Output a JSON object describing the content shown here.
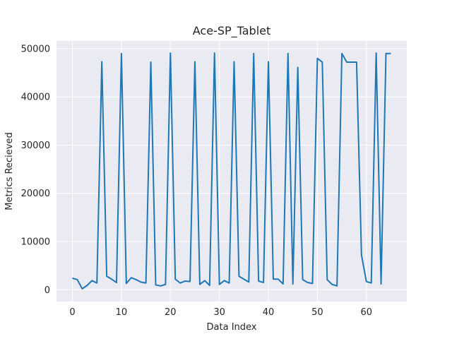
{
  "chart_data": {
    "type": "line",
    "title": "Ace-SP_Tablet",
    "xlabel": "Data Index",
    "ylabel": "Metrics Recieved",
    "xlim": [
      -3.25,
      68.25
    ],
    "ylim": [
      -2450,
      51600
    ],
    "xticks": [
      0,
      10,
      20,
      30,
      40,
      50,
      60
    ],
    "yticks": [
      0,
      10000,
      20000,
      30000,
      40000,
      50000
    ],
    "grid": true,
    "background": "#eaeaf2",
    "line_color": "#1f77b4",
    "series": [
      {
        "x": [
          0,
          1,
          2,
          3,
          4,
          5,
          6,
          7,
          8,
          9,
          10,
          11,
          12,
          13,
          14,
          15,
          16,
          17,
          18,
          19,
          20,
          21,
          22,
          23,
          24,
          25,
          26,
          27,
          28,
          29,
          30,
          31,
          32,
          33,
          34,
          35,
          36,
          37,
          38,
          39,
          40,
          41,
          42,
          43,
          44,
          45,
          46,
          47,
          48,
          49,
          50,
          51,
          52,
          53,
          54,
          55,
          56,
          57,
          58,
          59,
          60,
          61,
          62,
          63,
          64,
          65
        ],
        "y": [
          2400,
          2100,
          200,
          900,
          1900,
          1400,
          47300,
          2800,
          2200,
          1500,
          49000,
          1300,
          2500,
          2100,
          1600,
          1400,
          47200,
          1000,
          800,
          1100,
          49100,
          2200,
          1400,
          1800,
          1700,
          47300,
          1100,
          1900,
          900,
          49100,
          1100,
          1900,
          1400,
          47300,
          2800,
          2200,
          1600,
          49000,
          1800,
          1500,
          47300,
          2200,
          2200,
          1200,
          49000,
          1200,
          46100,
          2100,
          1500,
          1300,
          48000,
          47200,
          2100,
          1100,
          800,
          49000,
          47200,
          47200,
          47200,
          7200,
          1700,
          1400,
          49100,
          1200,
          49000,
          49000
        ]
      }
    ]
  }
}
